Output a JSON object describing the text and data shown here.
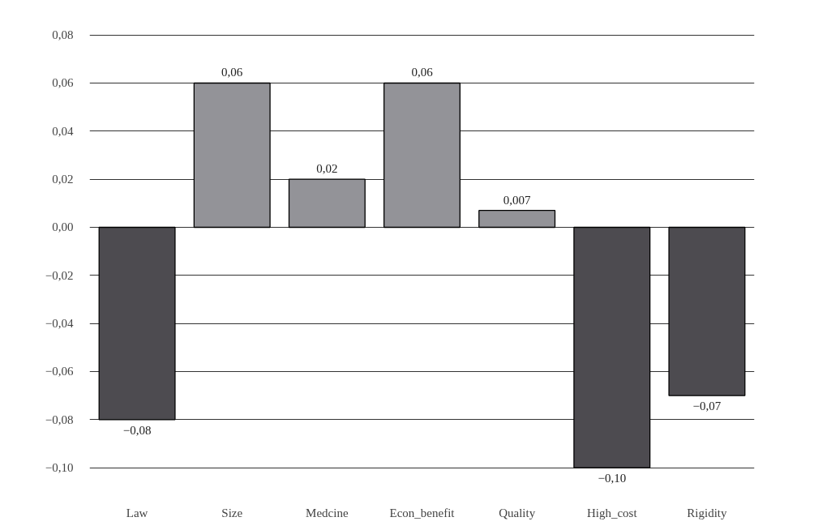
{
  "chart_data": {
    "type": "bar",
    "categories": [
      "Law",
      "Size",
      "Medcine",
      "Econ_benefit",
      "Quality",
      "High_cost",
      "Rigidity"
    ],
    "values": [
      -0.08,
      0.06,
      0.02,
      0.06,
      0.007,
      -0.1,
      -0.07
    ],
    "colors": [
      "#4d4b50",
      "#939398",
      "#939398",
      "#939398",
      "#939398",
      "#4d4b50",
      "#4d4b50"
    ],
    "value_labels": [
      "−0,08",
      "0,06",
      "0,02",
      "0,06",
      "0,007",
      "−0,10",
      "−0,07"
    ],
    "ylim": [
      -0.1,
      0.08
    ],
    "yticks": [
      {
        "value": -0.1,
        "label": "−0,10"
      },
      {
        "value": -0.08,
        "label": "−0,08"
      },
      {
        "value": -0.06,
        "label": "−0,06"
      },
      {
        "value": -0.04,
        "label": "−0,04"
      },
      {
        "value": -0.02,
        "label": "−0,02"
      },
      {
        "value": 0.0,
        "label": "0,00"
      },
      {
        "value": 0.02,
        "label": "0,02"
      },
      {
        "value": 0.04,
        "label": "0,04"
      },
      {
        "value": 0.06,
        "label": "0,06"
      },
      {
        "value": 0.08,
        "label": "0,08"
      }
    ],
    "grid": "y"
  }
}
